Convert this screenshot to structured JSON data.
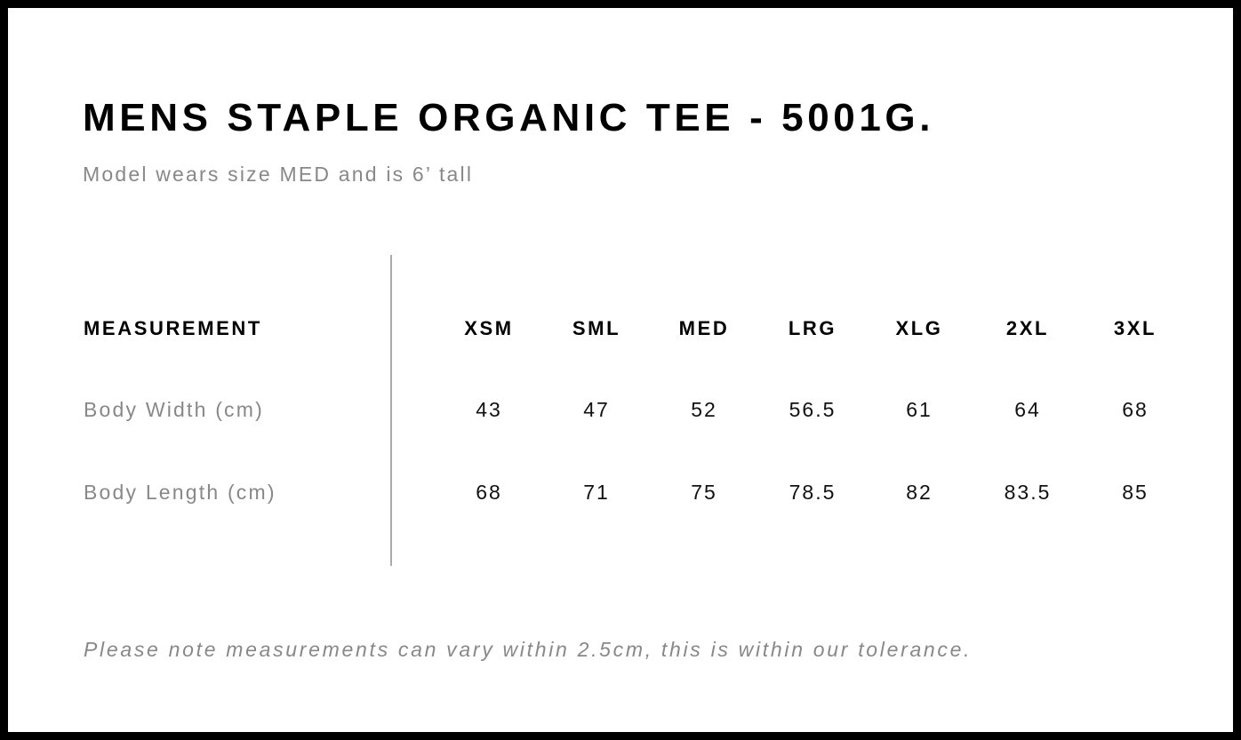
{
  "title": "MENS STAPLE ORGANIC TEE - 5001G.",
  "subtitle": "Model wears size MED and is 6’ tall",
  "table": {
    "header_label": "MEASUREMENT",
    "sizes": [
      "XSM",
      "SML",
      "MED",
      "LRG",
      "XLG",
      "2XL",
      "3XL"
    ],
    "rows": [
      {
        "label": "Body Width (cm)",
        "values": [
          "43",
          "47",
          "52",
          "56.5",
          "61",
          "64",
          "68"
        ]
      },
      {
        "label": "Body Length (cm)",
        "values": [
          "68",
          "71",
          "75",
          "78.5",
          "82",
          "83.5",
          "85"
        ]
      }
    ]
  },
  "note": "Please note measurements can vary within 2.5cm, this is within our tolerance."
}
